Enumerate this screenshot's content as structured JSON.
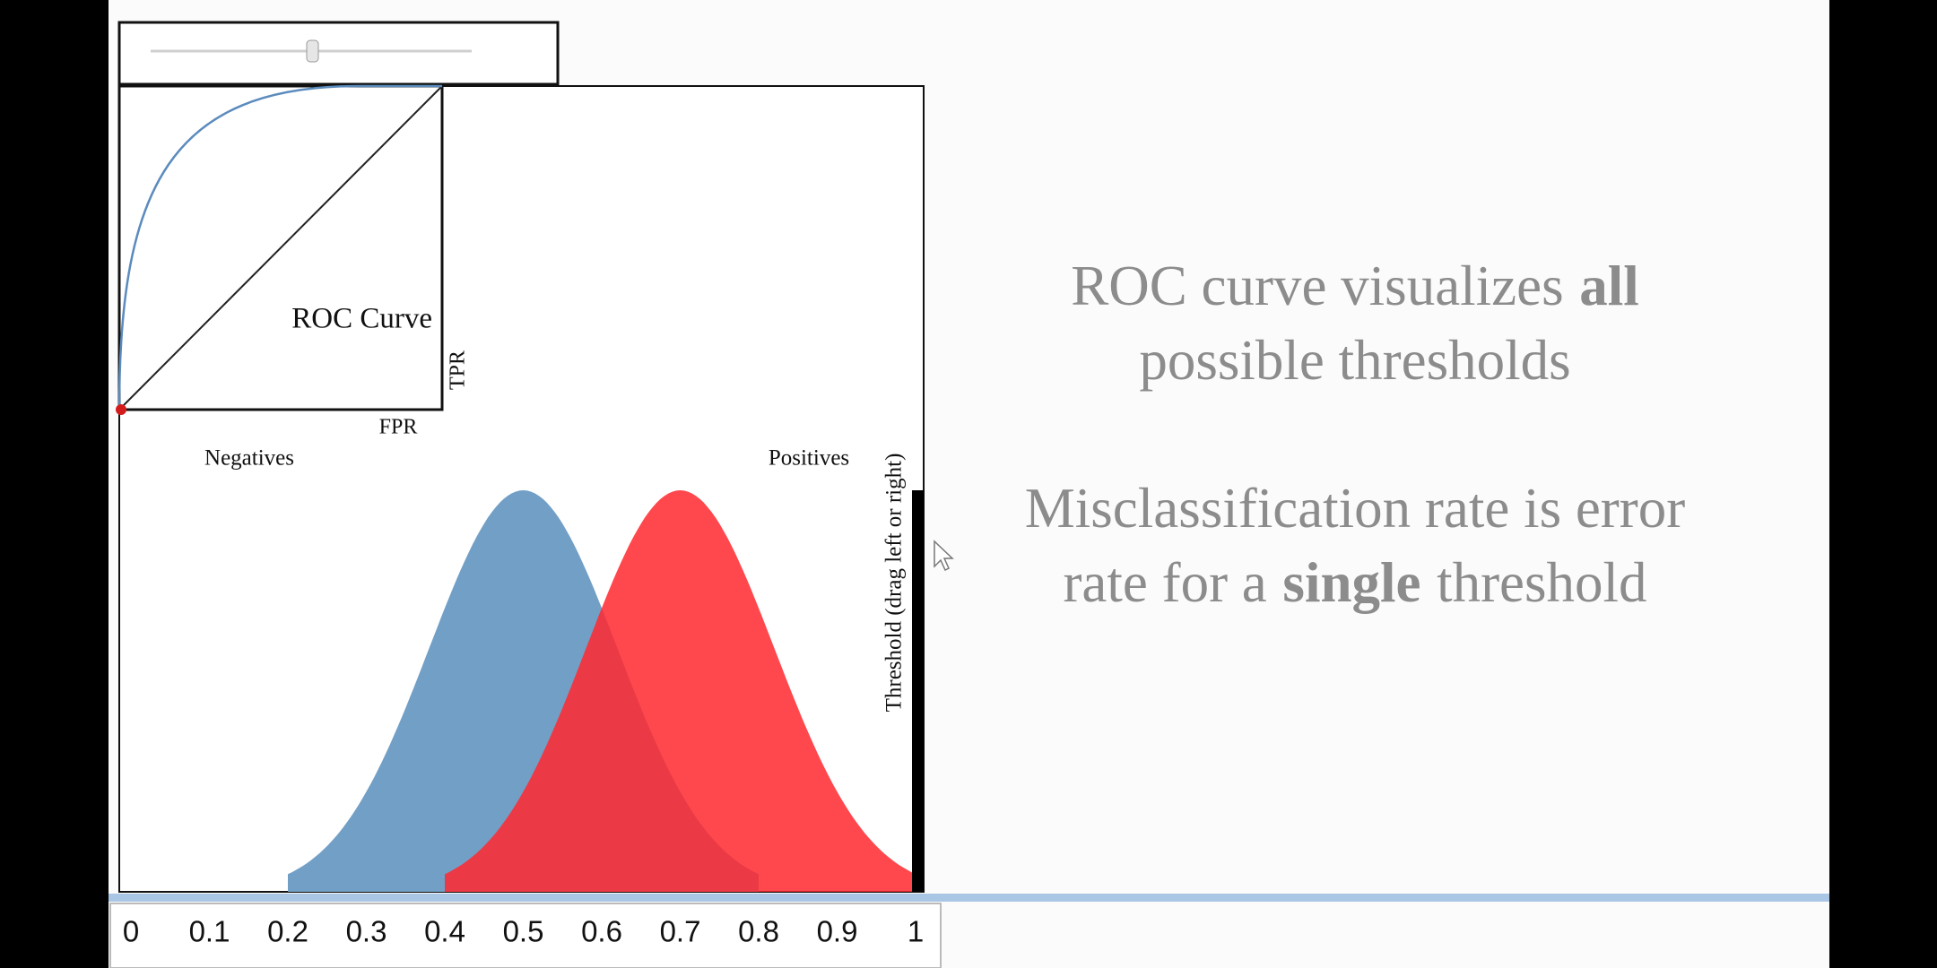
{
  "roc_panel": {
    "title": "ROC Curve",
    "y_label": "TPR",
    "x_label": "FPR"
  },
  "distribution_panel": {
    "negatives_label": "Negatives",
    "positives_label": "Positives",
    "threshold_label": "Threshold (drag left or right)"
  },
  "axis": {
    "ticks": [
      0,
      0.1,
      0.2,
      0.3,
      0.4,
      0.5,
      0.6,
      0.7,
      0.8,
      0.9,
      1
    ]
  },
  "notes": [
    {
      "lines": [
        [
          {
            "text": "ROC curve visualizes",
            "bold": false
          },
          {
            "text": "all",
            "bold": true
          }
        ],
        [
          {
            "text": "possible thresholds",
            "bold": false
          }
        ]
      ]
    },
    {
      "lines": [
        [
          {
            "text": "Misclassification rate is error",
            "bold": false
          }
        ],
        [
          {
            "text": "rate for a",
            "bold": false
          },
          {
            "text": "single",
            "bold": true
          },
          {
            "text": "threshold",
            "bold": false
          }
        ]
      ]
    }
  ]
}
